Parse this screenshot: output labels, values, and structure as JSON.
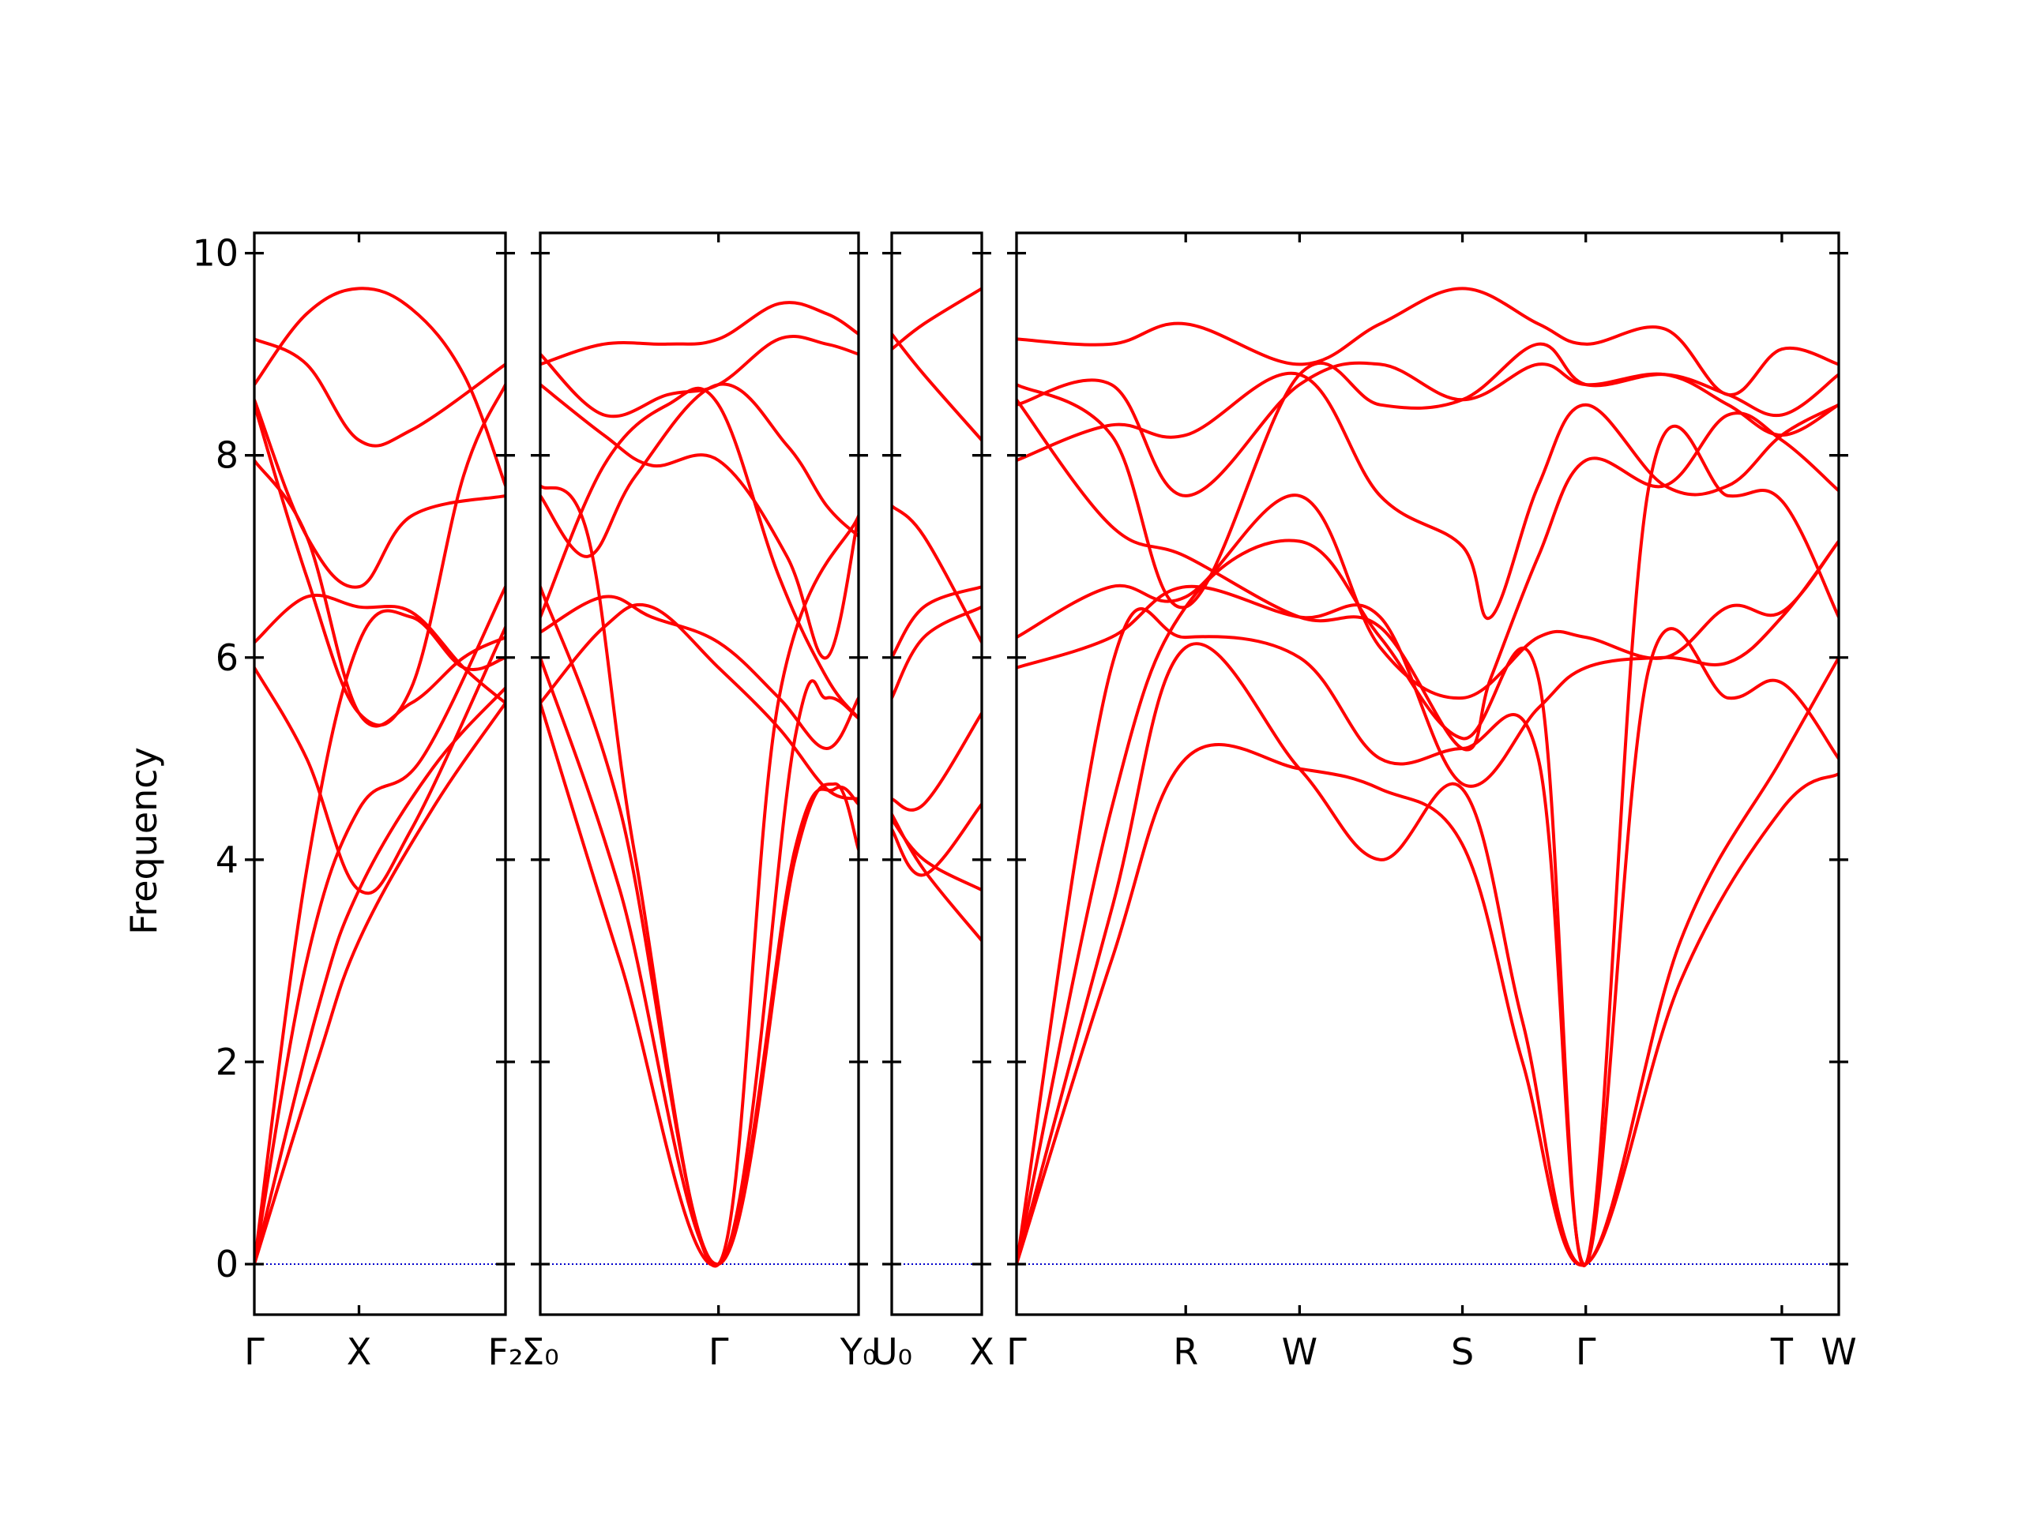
{
  "chart_data": {
    "type": "line",
    "title": "",
    "xlabel": "",
    "ylabel": "Frequency",
    "ylim": [
      -0.5,
      10.2
    ],
    "yticks": [
      "0",
      "2",
      "4",
      "6",
      "8",
      "10"
    ],
    "grid": false,
    "line_color": "#ff0000",
    "zero_line_color": "#0000cc",
    "panels": [
      {
        "id": "p1",
        "xlim": [
          0,
          2.4
        ],
        "ticks": [
          {
            "x": 0,
            "label": "Γ"
          },
          {
            "x": 1,
            "label": "X"
          },
          {
            "x": 2.4,
            "label": "F₂"
          }
        ],
        "series": [
          {
            "x": [
              0,
              0.6,
              1,
              1.7,
              2.4
            ],
            "values": [
              0,
              2.0,
              3.2,
              4.5,
              5.55
            ]
          },
          {
            "x": [
              0,
              0.6,
              1,
              1.7,
              2.4
            ],
            "values": [
              0,
              2.5,
              3.7,
              4.9,
              5.7
            ]
          },
          {
            "x": [
              0,
              0.5,
              1,
              1.6,
              2.4
            ],
            "values": [
              0,
              3.0,
              4.5,
              5.0,
              6.7
            ]
          },
          {
            "x": [
              0,
              0.5,
              1,
              1.5,
              2.0,
              2.4
            ],
            "values": [
              0,
              3.9,
              6.15,
              6.4,
              5.9,
              6.0
            ]
          },
          {
            "x": [
              0,
              0.5,
              1,
              1.5,
              2.4
            ],
            "values": [
              5.9,
              5.0,
              3.7,
              4.3,
              6.3
            ]
          },
          {
            "x": [
              0,
              0.5,
              1,
              1.5,
              2.0,
              2.4
            ],
            "values": [
              6.15,
              6.6,
              6.5,
              6.45,
              5.9,
              5.55
            ]
          },
          {
            "x": [
              0,
              0.5,
              1,
              1.5,
              2.0,
              2.4
            ],
            "values": [
              7.95,
              7.2,
              5.45,
              5.55,
              6.0,
              6.2
            ]
          },
          {
            "x": [
              0,
              0.5,
              1,
              1.5,
              2.4
            ],
            "values": [
              8.55,
              7.2,
              6.7,
              7.4,
              7.6
            ]
          },
          {
            "x": [
              0,
              0.5,
              1,
              1.5,
              2.4
            ],
            "values": [
              9.15,
              8.9,
              8.15,
              8.25,
              8.9
            ]
          },
          {
            "x": [
              0,
              0.5,
              1,
              1.5,
              2.0,
              2.4
            ],
            "values": [
              8.7,
              9.4,
              9.65,
              9.45,
              8.8,
              7.7
            ]
          },
          {
            "x": [
              0,
              0.5,
              1,
              1.5,
              2.0,
              2.4
            ],
            "values": [
              8.5,
              6.8,
              5.45,
              5.7,
              7.8,
              8.7
            ]
          }
        ]
      },
      {
        "id": "p2",
        "xlim": [
          0,
          2.0
        ],
        "ticks": [
          {
            "x": 0,
            "label": "Σ₀"
          },
          {
            "x": 1.12,
            "label": "Γ"
          },
          {
            "x": 2.0,
            "label": "Y₀"
          }
        ],
        "series": [
          {
            "x": [
              0,
              0.5,
              1.12,
              1.6,
              1.85,
              2.0
            ],
            "values": [
              5.55,
              3.0,
              0,
              4.1,
              4.7,
              4.55
            ]
          },
          {
            "x": [
              0,
              0.5,
              1.12,
              1.6,
              1.85,
              2.0
            ],
            "values": [
              6.0,
              3.7,
              0,
              4.0,
              4.75,
              4.1
            ]
          },
          {
            "x": [
              0,
              0.5,
              1.12,
              1.6,
              1.8,
              2.0
            ],
            "values": [
              6.7,
              4.5,
              0,
              5.2,
              5.6,
              5.4
            ]
          },
          {
            "x": [
              0,
              0.3,
              0.6,
              1.12,
              1.5,
              2.0
            ],
            "values": [
              7.7,
              7.2,
              4.0,
              0,
              5.6,
              7.4
            ]
          },
          {
            "x": [
              0,
              0.4,
              0.7,
              1.12,
              1.5,
              1.8,
              2.0
            ],
            "values": [
              5.55,
              6.3,
              6.5,
              5.9,
              5.3,
              4.7,
              4.6
            ]
          },
          {
            "x": [
              0,
              0.4,
              0.7,
              1.12,
              1.5,
              1.8,
              2.0
            ],
            "values": [
              6.25,
              6.6,
              6.4,
              6.15,
              5.6,
              5.1,
              5.6
            ]
          },
          {
            "x": [
              0,
              0.3,
              0.6,
              1.12,
              1.55,
              1.8,
              2.0
            ],
            "values": [
              7.6,
              7.0,
              7.8,
              8.7,
              8.1,
              7.5,
              7.2
            ]
          },
          {
            "x": [
              0,
              0.4,
              0.7,
              1.12,
              1.55,
              1.8,
              2.0
            ],
            "values": [
              8.7,
              8.2,
              7.9,
              7.95,
              7.0,
              6.0,
              7.4
            ]
          },
          {
            "x": [
              0,
              0.4,
              0.8,
              1.12,
              1.5,
              1.8,
              2.0
            ],
            "values": [
              6.4,
              7.9,
              8.5,
              8.5,
              6.8,
              5.8,
              5.4
            ]
          },
          {
            "x": [
              0,
              0.4,
              0.8,
              1.12,
              1.5,
              1.8,
              2.0
            ],
            "values": [
              8.9,
              9.1,
              9.1,
              9.15,
              9.5,
              9.4,
              9.2
            ]
          },
          {
            "x": [
              0,
              0.4,
              0.8,
              1.12,
              1.5,
              1.8,
              2.0
            ],
            "values": [
              9.0,
              8.4,
              8.6,
              8.7,
              9.15,
              9.1,
              9.0
            ]
          }
        ]
      },
      {
        "id": "p3",
        "xlim": [
          0,
          0.56
        ],
        "ticks": [
          {
            "x": 0,
            "label": "U₀"
          },
          {
            "x": 0.56,
            "label": "X"
          }
        ],
        "series": [
          {
            "x": [
              0,
              0.2,
              0.56
            ],
            "values": [
              4.45,
              3.9,
              3.2
            ]
          },
          {
            "x": [
              0,
              0.2,
              0.56
            ],
            "values": [
              4.4,
              4.0,
              3.7
            ]
          },
          {
            "x": [
              0,
              0.2,
              0.56
            ],
            "values": [
              4.3,
              3.85,
              4.55
            ]
          },
          {
            "x": [
              0,
              0.2,
              0.56
            ],
            "values": [
              4.6,
              4.55,
              5.45
            ]
          },
          {
            "x": [
              0,
              0.2,
              0.56
            ],
            "values": [
              5.6,
              6.2,
              6.5
            ]
          },
          {
            "x": [
              0,
              0.2,
              0.56
            ],
            "values": [
              6.0,
              6.5,
              6.7
            ]
          },
          {
            "x": [
              0,
              0.2,
              0.56
            ],
            "values": [
              7.5,
              7.2,
              6.15
            ]
          },
          {
            "x": [
              0,
              0.2,
              0.56
            ],
            "values": [
              9.05,
              9.3,
              9.65
            ]
          },
          {
            "x": [
              0,
              0.2,
              0.56
            ],
            "values": [
              9.2,
              8.8,
              8.15
            ]
          }
        ]
      },
      {
        "id": "p4",
        "xlim": [
          0,
          5.2
        ],
        "ticks": [
          {
            "x": 0,
            "label": "Γ"
          },
          {
            "x": 1.07,
            "label": "R"
          },
          {
            "x": 1.79,
            "label": "W"
          },
          {
            "x": 2.82,
            "label": "S"
          },
          {
            "x": 3.6,
            "label": "Γ"
          },
          {
            "x": 4.84,
            "label": "T"
          },
          {
            "x": 5.2,
            "label": "W"
          }
        ],
        "series": [
          {
            "x": [
              0,
              0.6,
              1.07,
              1.79,
              2.3,
              2.82,
              3.2,
              3.6,
              4.2,
              4.84,
              5.2
            ],
            "values": [
              0,
              3.0,
              5.0,
              4.9,
              4.7,
              4.15,
              2.0,
              0,
              2.8,
              4.5,
              4.85
            ]
          },
          {
            "x": [
              0,
              0.6,
              1.07,
              1.79,
              2.3,
              2.82,
              3.2,
              3.6,
              4.2,
              4.84,
              5.2
            ],
            "values": [
              0,
              3.5,
              6.1,
              4.9,
              4.0,
              4.7,
              2.4,
              0,
              3.2,
              5.0,
              6.0
            ]
          },
          {
            "x": [
              0,
              0.6,
              1.07,
              1.79,
              2.3,
              2.82,
              3.3,
              3.6,
              4.0,
              4.5,
              4.84,
              5.2
            ],
            "values": [
              0,
              5.9,
              6.2,
              6.0,
              5.0,
              5.1,
              5.0,
              0,
              5.9,
              5.6,
              5.75,
              5.0
            ]
          },
          {
            "x": [
              0,
              0.6,
              1.07,
              1.79,
              2.3,
              2.82,
              3.3,
              3.6,
              4.0,
              4.5,
              4.84,
              5.2
            ],
            "values": [
              0,
              4.5,
              6.5,
              7.15,
              6.2,
              5.2,
              5.8,
              0,
              7.7,
              7.6,
              7.55,
              6.4
            ]
          },
          {
            "x": [
              0,
              0.6,
              1.07,
              1.79,
              2.3,
              2.82,
              3.3,
              3.6,
              4.1,
              4.5,
              4.84,
              5.2
            ],
            "values": [
              5.9,
              6.2,
              6.7,
              6.4,
              6.4,
              4.75,
              5.5,
              5.9,
              6.0,
              5.95,
              6.4,
              7.15
            ]
          },
          {
            "x": [
              0,
              0.6,
              1.07,
              1.79,
              2.3,
              2.82,
              3.3,
              3.6,
              4.1,
              4.5,
              4.84,
              5.2
            ],
            "values": [
              6.2,
              6.7,
              6.6,
              7.6,
              6.1,
              5.6,
              6.2,
              6.2,
              6.0,
              6.5,
              6.45,
              7.15
            ]
          },
          {
            "x": [
              0,
              0.6,
              1.07,
              1.79,
              2.3,
              2.82,
              3.0,
              3.3,
              3.6,
              4.1,
              4.5,
              4.84,
              5.2
            ],
            "values": [
              7.95,
              8.3,
              8.2,
              8.8,
              7.6,
              7.1,
              6.4,
              7.7,
              8.5,
              7.7,
              7.7,
              8.2,
              8.5
            ]
          },
          {
            "x": [
              0,
              0.6,
              1.07,
              1.79,
              2.3,
              2.82,
              3.0,
              3.3,
              3.6,
              4.1,
              4.5,
              4.84,
              5.2
            ],
            "values": [
              8.55,
              7.3,
              7.0,
              6.4,
              6.3,
              5.1,
              5.8,
              7.0,
              7.95,
              7.7,
              8.4,
              8.15,
              7.65
            ]
          },
          {
            "x": [
              0,
              0.6,
              1.07,
              1.79,
              2.3,
              2.82,
              3.3,
              3.6,
              4.1,
              4.5,
              4.84,
              5.2
            ],
            "values": [
              8.7,
              8.2,
              6.5,
              8.8,
              8.5,
              8.55,
              9.1,
              8.7,
              8.8,
              8.6,
              8.4,
              8.8
            ]
          },
          {
            "x": [
              0,
              0.6,
              1.07,
              1.79,
              2.3,
              2.82,
              3.3,
              3.6,
              4.1,
              4.5,
              4.84,
              5.2
            ],
            "values": [
              9.15,
              9.1,
              9.3,
              8.9,
              9.3,
              9.65,
              9.3,
              9.1,
              9.25,
              8.6,
              9.05,
              8.9
            ]
          },
          {
            "x": [
              0,
              0.6,
              1.07,
              1.79,
              2.3,
              2.82,
              3.3,
              3.6,
              4.1,
              4.5,
              4.84,
              5.2
            ],
            "values": [
              8.5,
              8.7,
              7.6,
              8.7,
              8.9,
              8.55,
              8.9,
              8.7,
              8.8,
              8.5,
              8.2,
              8.5
            ]
          }
        ]
      }
    ]
  }
}
